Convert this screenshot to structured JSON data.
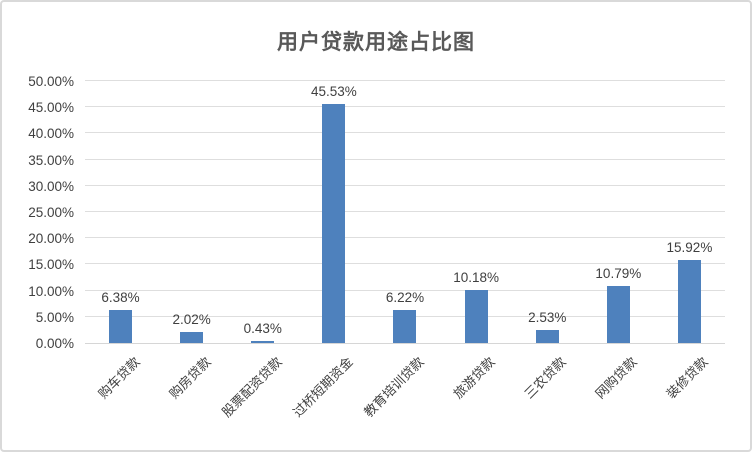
{
  "window": {
    "background_color": "#ffffff",
    "frame_border_color": "#d9d9d9"
  },
  "chart": {
    "bar_color": "#4e81bd",
    "gridline_color": "#dedede",
    "axis_line_color": "#d6d6d6",
    "label_color": "#3f3f3f",
    "title_color": "#595959"
  },
  "chart_data": {
    "type": "bar",
    "title": "用户贷款用途占比图",
    "categories": [
      "购车贷款",
      "购房贷款",
      "股票配资贷款",
      "过桥短期资金",
      "教育培训贷款",
      "旅游贷款",
      "三农贷款",
      "网购贷款",
      "装修贷款"
    ],
    "values": [
      6.38,
      2.02,
      0.43,
      45.53,
      6.22,
      10.18,
      2.53,
      10.79,
      15.92
    ],
    "data_labels": [
      "6.38%",
      "2.02%",
      "0.43%",
      "45.53%",
      "6.22%",
      "10.18%",
      "2.53%",
      "10.79%",
      "15.92%"
    ],
    "yticks": [
      "0.00%",
      "5.00%",
      "10.00%",
      "15.00%",
      "20.00%",
      "25.00%",
      "30.00%",
      "35.00%",
      "40.00%",
      "45.00%",
      "50.00%"
    ],
    "ylim": [
      0,
      50
    ],
    "xlabel": "",
    "ylabel": "",
    "grid": true,
    "legend_position": "none",
    "x_label_rotation_deg": 45
  }
}
